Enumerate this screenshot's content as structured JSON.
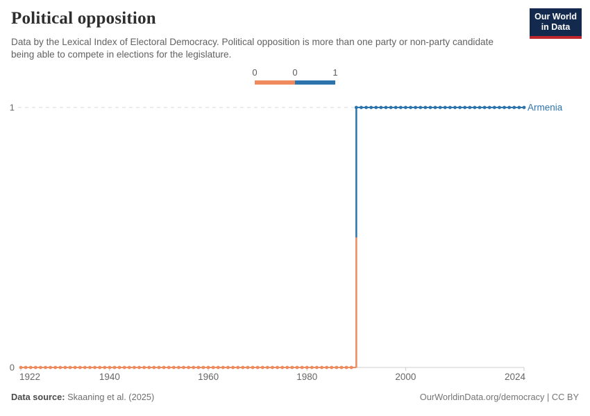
{
  "header": {
    "title": "Political opposition",
    "subtitle": "Data by the Lexical Index of Electoral Democracy. Political opposition is more than one party or non-party candidate being able to compete in elections for the legislature.",
    "logo": {
      "line1": "Our World",
      "line2": "in Data",
      "bg_color": "#13294d",
      "bar_color": "#c0272d"
    }
  },
  "legend": {
    "labels": [
      "0",
      "0",
      "1"
    ],
    "segments": [
      {
        "value": 0,
        "color": "#ee8a5e"
      },
      {
        "value": 1,
        "color": "#2d74ad"
      }
    ]
  },
  "chart_data": {
    "type": "line",
    "title": "Political opposition",
    "entity": "Armenia",
    "x": {
      "min": 1922,
      "max": 2024,
      "ticks": [
        1922,
        1940,
        1960,
        1980,
        2000,
        2024
      ]
    },
    "y": {
      "min": 0,
      "max": 1,
      "ticks": [
        0,
        1
      ]
    },
    "series": [
      {
        "name": "Armenia",
        "label_color": "#2d74ad",
        "segments": [
          {
            "value": 0,
            "start_year": 1922,
            "end_year": 1989,
            "color": "#ee8a5e"
          },
          {
            "value": 1,
            "start_year": 1990,
            "end_year": 2024,
            "color": "#2d74ad"
          }
        ]
      }
    ],
    "step_year": 1990,
    "grid": {
      "dashed_gridline_at": 1,
      "gridline_color": "#d9d9d9",
      "axis_color": "#cccccc",
      "tick_label_color": "#666666"
    },
    "legend_position": "top-center",
    "markers": "circle-every-year"
  },
  "footer": {
    "source_label": "Data source:",
    "source_value": "Skaaning et al. (2025)",
    "right": "OurWorldinData.org/democracy | CC BY"
  }
}
